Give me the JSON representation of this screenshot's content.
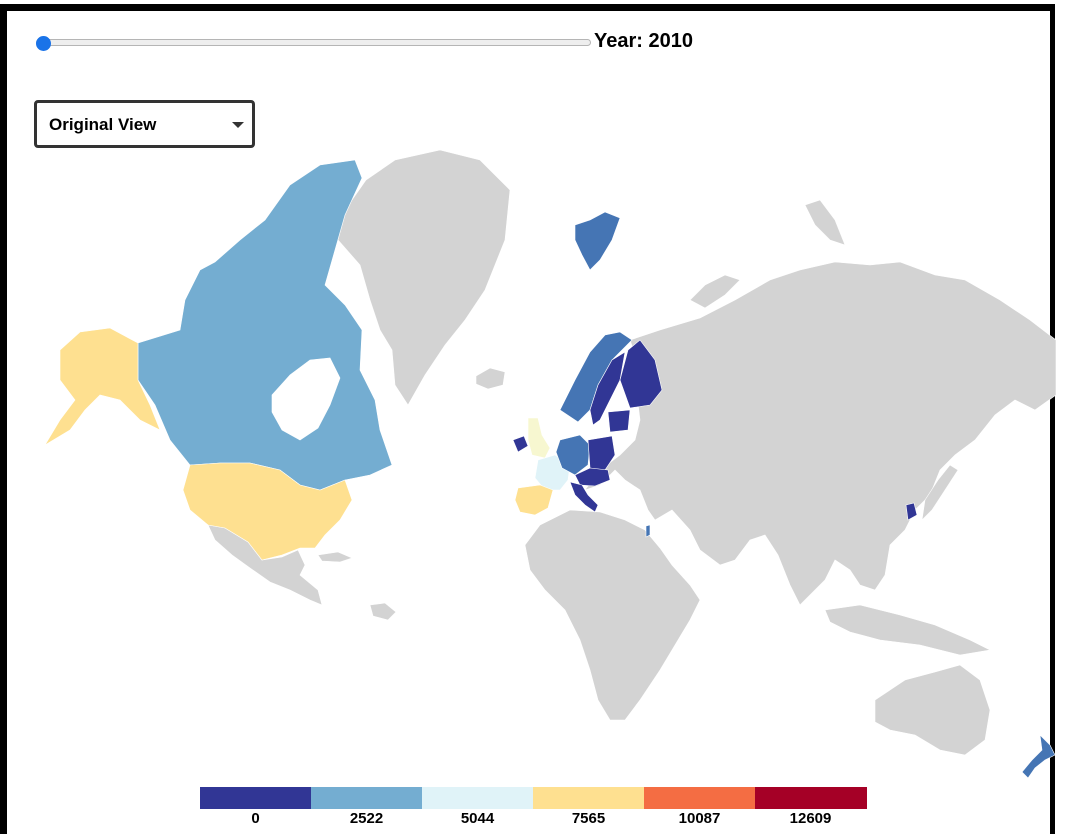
{
  "year_slider": {
    "label": "Year: 2010",
    "value": 2010,
    "position_fraction": 0.0
  },
  "view_select": {
    "selected": "Original View"
  },
  "map": {
    "no_data_color": "#d3d3d3",
    "countries": [
      {
        "name": "Canada",
        "color": "#74add1"
      },
      {
        "name": "United States",
        "color": "#fee090"
      },
      {
        "name": "Alaska",
        "color": "#fee090"
      },
      {
        "name": "Greenland",
        "color": "#d3d3d3"
      },
      {
        "name": "Svalbard",
        "color": "#4575b4"
      },
      {
        "name": "Norway",
        "color": "#4575b4"
      },
      {
        "name": "Sweden",
        "color": "#313695"
      },
      {
        "name": "Finland",
        "color": "#313695"
      },
      {
        "name": "United Kingdom",
        "color": "#f7f7d0"
      },
      {
        "name": "Ireland",
        "color": "#313695"
      },
      {
        "name": "France",
        "color": "#e0f3f8"
      },
      {
        "name": "Germany",
        "color": "#4575b4"
      },
      {
        "name": "Poland",
        "color": "#313695"
      },
      {
        "name": "Baltic States",
        "color": "#313695"
      },
      {
        "name": "Spain",
        "color": "#fee090"
      },
      {
        "name": "Italy",
        "color": "#313695"
      },
      {
        "name": "Korea",
        "color": "#313695"
      },
      {
        "name": "New Zealand",
        "color": "#4575b4"
      },
      {
        "name": "Israel",
        "color": "#4575b4"
      }
    ]
  },
  "legend": {
    "bins": [
      {
        "label": "0",
        "color": "#313695"
      },
      {
        "label": "2522",
        "color": "#74add1"
      },
      {
        "label": "5044",
        "color": "#e0f3f8"
      },
      {
        "label": "7565",
        "color": "#fee090"
      },
      {
        "label": "10087",
        "color": "#f46d43"
      },
      {
        "label": "12609",
        "color": "#a50026"
      }
    ]
  }
}
